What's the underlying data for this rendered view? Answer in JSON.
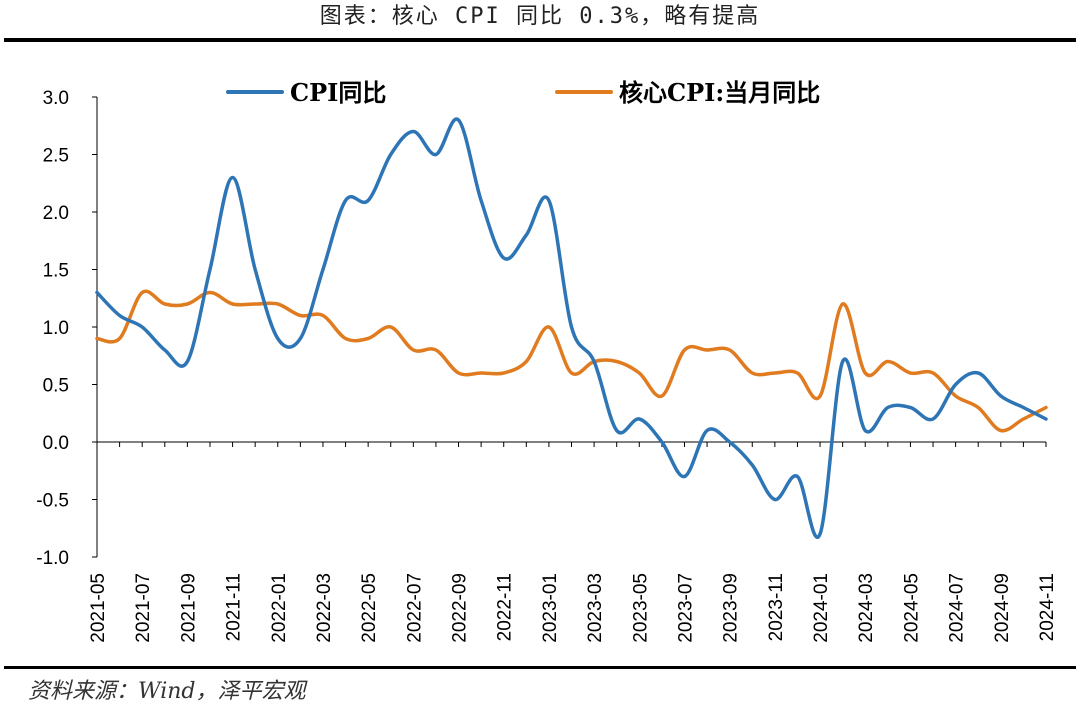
{
  "title": "图表：核心 CPI 同比 0.3%，略有提高",
  "source": "资料来源：Wind，泽平宏观",
  "chart_data": {
    "type": "line",
    "x": [
      "2021-05",
      "2021-06",
      "2021-07",
      "2021-08",
      "2021-09",
      "2021-10",
      "2021-11",
      "2021-12",
      "2022-01",
      "2022-02",
      "2022-03",
      "2022-04",
      "2022-05",
      "2022-06",
      "2022-07",
      "2022-08",
      "2022-09",
      "2022-10",
      "2022-11",
      "2022-12",
      "2023-01",
      "2023-02",
      "2023-03",
      "2023-04",
      "2023-05",
      "2023-06",
      "2023-07",
      "2023-08",
      "2023-09",
      "2023-10",
      "2023-11",
      "2023-12",
      "2024-01",
      "2024-02",
      "2024-03",
      "2024-04",
      "2024-05",
      "2024-06",
      "2024-07",
      "2024-08",
      "2024-09",
      "2024-10",
      "2024-11"
    ],
    "x_tick_labels": [
      "2021-05",
      "2021-07",
      "2021-09",
      "2021-11",
      "2022-01",
      "2022-03",
      "2022-05",
      "2022-07",
      "2022-09",
      "2022-11",
      "2023-01",
      "2023-03",
      "2023-05",
      "2023-07",
      "2023-09",
      "2023-11",
      "2024-01",
      "2024-03",
      "2024-05",
      "2024-07",
      "2024-09",
      "2024-11"
    ],
    "y_tick_labels": [
      "3.0",
      "2.5",
      "2.0",
      "1.5",
      "1.0",
      "0.5",
      "0.0",
      "-0.5",
      "-1.0"
    ],
    "ylim": [
      -1.0,
      3.0
    ],
    "series": [
      {
        "name": "CPI同比",
        "color": "#2E75B6",
        "values": [
          1.3,
          1.1,
          1.0,
          0.8,
          0.7,
          1.5,
          2.3,
          1.5,
          0.9,
          0.9,
          1.5,
          2.1,
          2.1,
          2.5,
          2.7,
          2.5,
          2.8,
          2.1,
          1.6,
          1.8,
          2.1,
          1.0,
          0.7,
          0.1,
          0.2,
          0.0,
          -0.3,
          0.1,
          0.0,
          -0.2,
          -0.5,
          -0.3,
          -0.8,
          0.7,
          0.1,
          0.3,
          0.3,
          0.2,
          0.5,
          0.6,
          0.4,
          0.3,
          0.2
        ]
      },
      {
        "name": "核心CPI:当月同比",
        "color": "#E07B1F",
        "values": [
          0.9,
          0.9,
          1.3,
          1.2,
          1.2,
          1.3,
          1.2,
          1.2,
          1.2,
          1.1,
          1.1,
          0.9,
          0.9,
          1.0,
          0.8,
          0.8,
          0.6,
          0.6,
          0.6,
          0.7,
          1.0,
          0.6,
          0.7,
          0.7,
          0.6,
          0.4,
          0.8,
          0.8,
          0.8,
          0.6,
          0.6,
          0.6,
          0.4,
          1.2,
          0.6,
          0.7,
          0.6,
          0.6,
          0.4,
          0.3,
          0.1,
          0.2,
          0.3
        ]
      }
    ]
  }
}
